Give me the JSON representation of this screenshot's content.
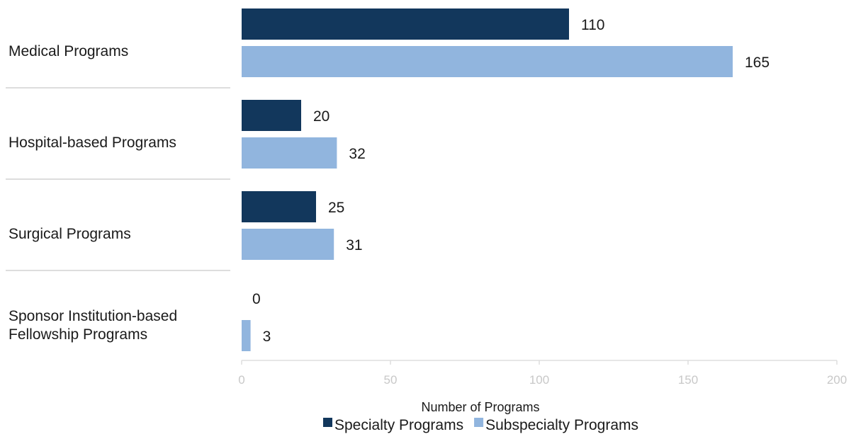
{
  "chart_data": {
    "type": "bar",
    "orientation": "horizontal",
    "categories": [
      [
        "Medical Programs"
      ],
      [
        "Hospital-based Programs"
      ],
      [
        "Surgical Programs"
      ],
      [
        "Sponsor Institution-based",
        "Fellowship Programs"
      ]
    ],
    "series": [
      {
        "name": "Specialty Programs",
        "color": "#12375c",
        "values": [
          110,
          20,
          25,
          0
        ]
      },
      {
        "name": "Subspecialty Programs",
        "color": "#91b5de",
        "values": [
          165,
          32,
          31,
          3
        ]
      }
    ],
    "xlabel": "Number of Programs",
    "xlim": [
      0,
      200
    ],
    "xticks": [
      0,
      50,
      100,
      150,
      200
    ],
    "legend_position": "bottom",
    "grid": false
  }
}
